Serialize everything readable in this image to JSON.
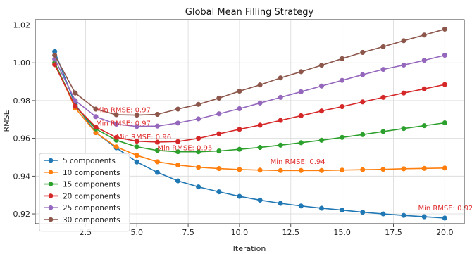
{
  "chart_data": {
    "type": "line",
    "title": "Global Mean Filling Strategy",
    "xlabel": "Iteration",
    "ylabel": "RMSE",
    "xlim": [
      0.05,
      20.95
    ],
    "ylim": [
      0.9148,
      1.0228
    ],
    "xticks": [
      2.5,
      5.0,
      7.5,
      10.0,
      12.5,
      15.0,
      17.5,
      20.0
    ],
    "xtick_labels": [
      "2.5",
      "5.0",
      "7.5",
      "10.0",
      "12.5",
      "15.0",
      "17.5",
      "20.0"
    ],
    "yticks": [
      0.92,
      0.94,
      0.96,
      0.98,
      1.0,
      1.02
    ],
    "ytick_labels": [
      "0.92",
      "0.94",
      "0.96",
      "0.98",
      "1.00",
      "1.02"
    ],
    "grid": true,
    "legend_position": "lower-left",
    "x": [
      1,
      2,
      3,
      4,
      5,
      6,
      7,
      8,
      9,
      10,
      11,
      12,
      13,
      14,
      15,
      16,
      17,
      18,
      19,
      20
    ],
    "series": [
      {
        "name": "5 components",
        "color": "#1f77b4",
        "values": [
          1.006,
          0.978,
          0.963,
          0.955,
          0.9475,
          0.942,
          0.9375,
          0.9343,
          0.9317,
          0.9293,
          0.9273,
          0.9256,
          0.9242,
          0.923,
          0.922,
          0.9209,
          0.92,
          0.9192,
          0.9185,
          0.9178
        ]
      },
      {
        "name": "10 components",
        "color": "#ff7f0e",
        "values": [
          1.0,
          0.976,
          0.963,
          0.9555,
          0.951,
          0.9476,
          0.9459,
          0.9447,
          0.944,
          0.9435,
          0.9432,
          0.943,
          0.943,
          0.943,
          0.9432,
          0.9434,
          0.9436,
          0.9439,
          0.9441,
          0.9443
        ]
      },
      {
        "name": "15 components",
        "color": "#2ca02c",
        "values": [
          1.0,
          0.977,
          0.965,
          0.959,
          0.9555,
          0.9536,
          0.9529,
          0.9529,
          0.9533,
          0.9542,
          0.9552,
          0.9564,
          0.9577,
          0.959,
          0.9605,
          0.962,
          0.9636,
          0.9652,
          0.9667,
          0.9682
        ]
      },
      {
        "name": "20 components",
        "color": "#d62728",
        "values": [
          0.999,
          0.977,
          0.966,
          0.9605,
          0.9585,
          0.958,
          0.9583,
          0.96,
          0.9624,
          0.9648,
          0.967,
          0.9695,
          0.972,
          0.9745,
          0.9768,
          0.9793,
          0.9817,
          0.984,
          0.9862,
          0.9885
        ]
      },
      {
        "name": "25 components",
        "color": "#9467bd",
        "values": [
          1.002,
          0.98,
          0.9715,
          0.9675,
          0.9663,
          0.9665,
          0.9681,
          0.9703,
          0.973,
          0.9757,
          0.9787,
          0.9817,
          0.9847,
          0.9877,
          0.9907,
          0.9937,
          0.9965,
          0.9988,
          1.0013,
          1.004
        ]
      },
      {
        "name": "30 components",
        "color": "#8c564b",
        "values": [
          1.004,
          0.984,
          0.9755,
          0.9725,
          0.9723,
          0.9727,
          0.9755,
          0.978,
          0.9813,
          0.985,
          0.9883,
          0.992,
          0.9953,
          0.9987,
          1.0022,
          1.0055,
          1.0085,
          1.0117,
          1.0147,
          1.0178
        ]
      }
    ],
    "annotations": [
      {
        "text": "Min RMSE: 0.97",
        "x": 3.0,
        "y": 0.9738,
        "color": "#e03131"
      },
      {
        "text": "Min RMSE: 0.97",
        "x": 3.0,
        "y": 0.9668,
        "color": "#e03131"
      },
      {
        "text": "Min RMSE: 0.96",
        "x": 4.0,
        "y": 0.9595,
        "color": "#e03131"
      },
      {
        "text": "Min RMSE: 0.95",
        "x": 6.0,
        "y": 0.9538,
        "color": "#e03131"
      },
      {
        "text": "Min RMSE: 0.94",
        "x": 11.5,
        "y": 0.9465,
        "color": "#e03131"
      },
      {
        "text": "Min RMSE: 0.92",
        "x": 18.7,
        "y": 0.9218,
        "color": "#e03131"
      }
    ]
  }
}
